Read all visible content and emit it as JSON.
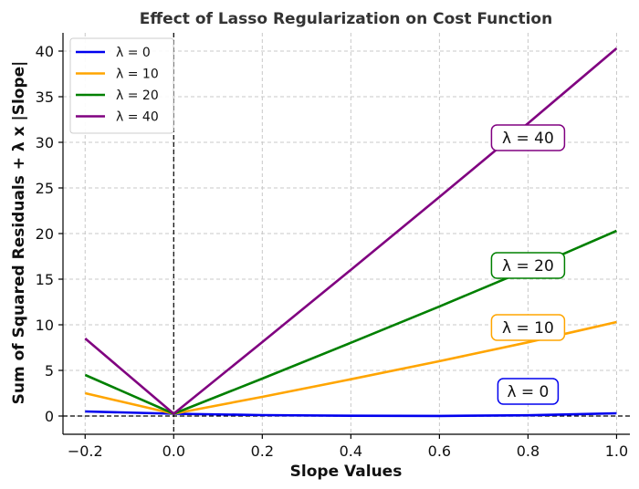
{
  "chart_data": {
    "type": "line",
    "title": "Effect of Lasso Regularization on Cost Function",
    "xlabel": "Slope Values",
    "ylabel": "Sum of Squared Residuals + λ x |Slope|",
    "xlim": [
      -0.25,
      1.03
    ],
    "ylim": [
      -2,
      42
    ],
    "xticks": [
      -0.2,
      0.0,
      0.2,
      0.4,
      0.6,
      0.8,
      1.0
    ],
    "xtick_labels": [
      "−0.2",
      "0.0",
      "0.2",
      "0.4",
      "0.6",
      "0.8",
      "1.0"
    ],
    "yticks": [
      0,
      5,
      10,
      15,
      20,
      25,
      30,
      35,
      40
    ],
    "ytick_labels": [
      "0",
      "5",
      "10",
      "15",
      "20",
      "25",
      "30",
      "35",
      "40"
    ],
    "grid": true,
    "legend_position": "top-left",
    "reference_lines": {
      "vertical_x": 0.0,
      "horizontal_y": 0.0
    },
    "x": [
      -0.2,
      0.0,
      0.2,
      0.4,
      0.6,
      0.8,
      1.0
    ],
    "series": [
      {
        "name": "λ = 0",
        "color": "#0000ee",
        "values": [
          0.5,
          0.25,
          0.1,
          0.03,
          0.01,
          0.08,
          0.3
        ]
      },
      {
        "name": "λ = 10",
        "color": "#ffa500",
        "values": [
          2.5,
          0.25,
          2.1,
          4.03,
          6.01,
          8.08,
          10.3
        ]
      },
      {
        "name": "λ = 20",
        "color": "#008000",
        "values": [
          4.5,
          0.25,
          4.1,
          8.03,
          12.01,
          16.08,
          20.3
        ]
      },
      {
        "name": "λ = 40",
        "color": "#800080",
        "values": [
          8.5,
          0.25,
          8.1,
          16.03,
          24.01,
          32.08,
          40.3
        ]
      }
    ],
    "annotations": [
      {
        "text": "λ = 40",
        "x": 0.8,
        "y": 30.5,
        "color": "#800080"
      },
      {
        "text": "λ = 20",
        "x": 0.8,
        "y": 16.5,
        "color": "#008000"
      },
      {
        "text": "λ = 10",
        "x": 0.8,
        "y": 9.7,
        "color": "#ffa500"
      },
      {
        "text": "λ = 0",
        "x": 0.8,
        "y": 2.7,
        "color": "#0000ee"
      }
    ]
  }
}
